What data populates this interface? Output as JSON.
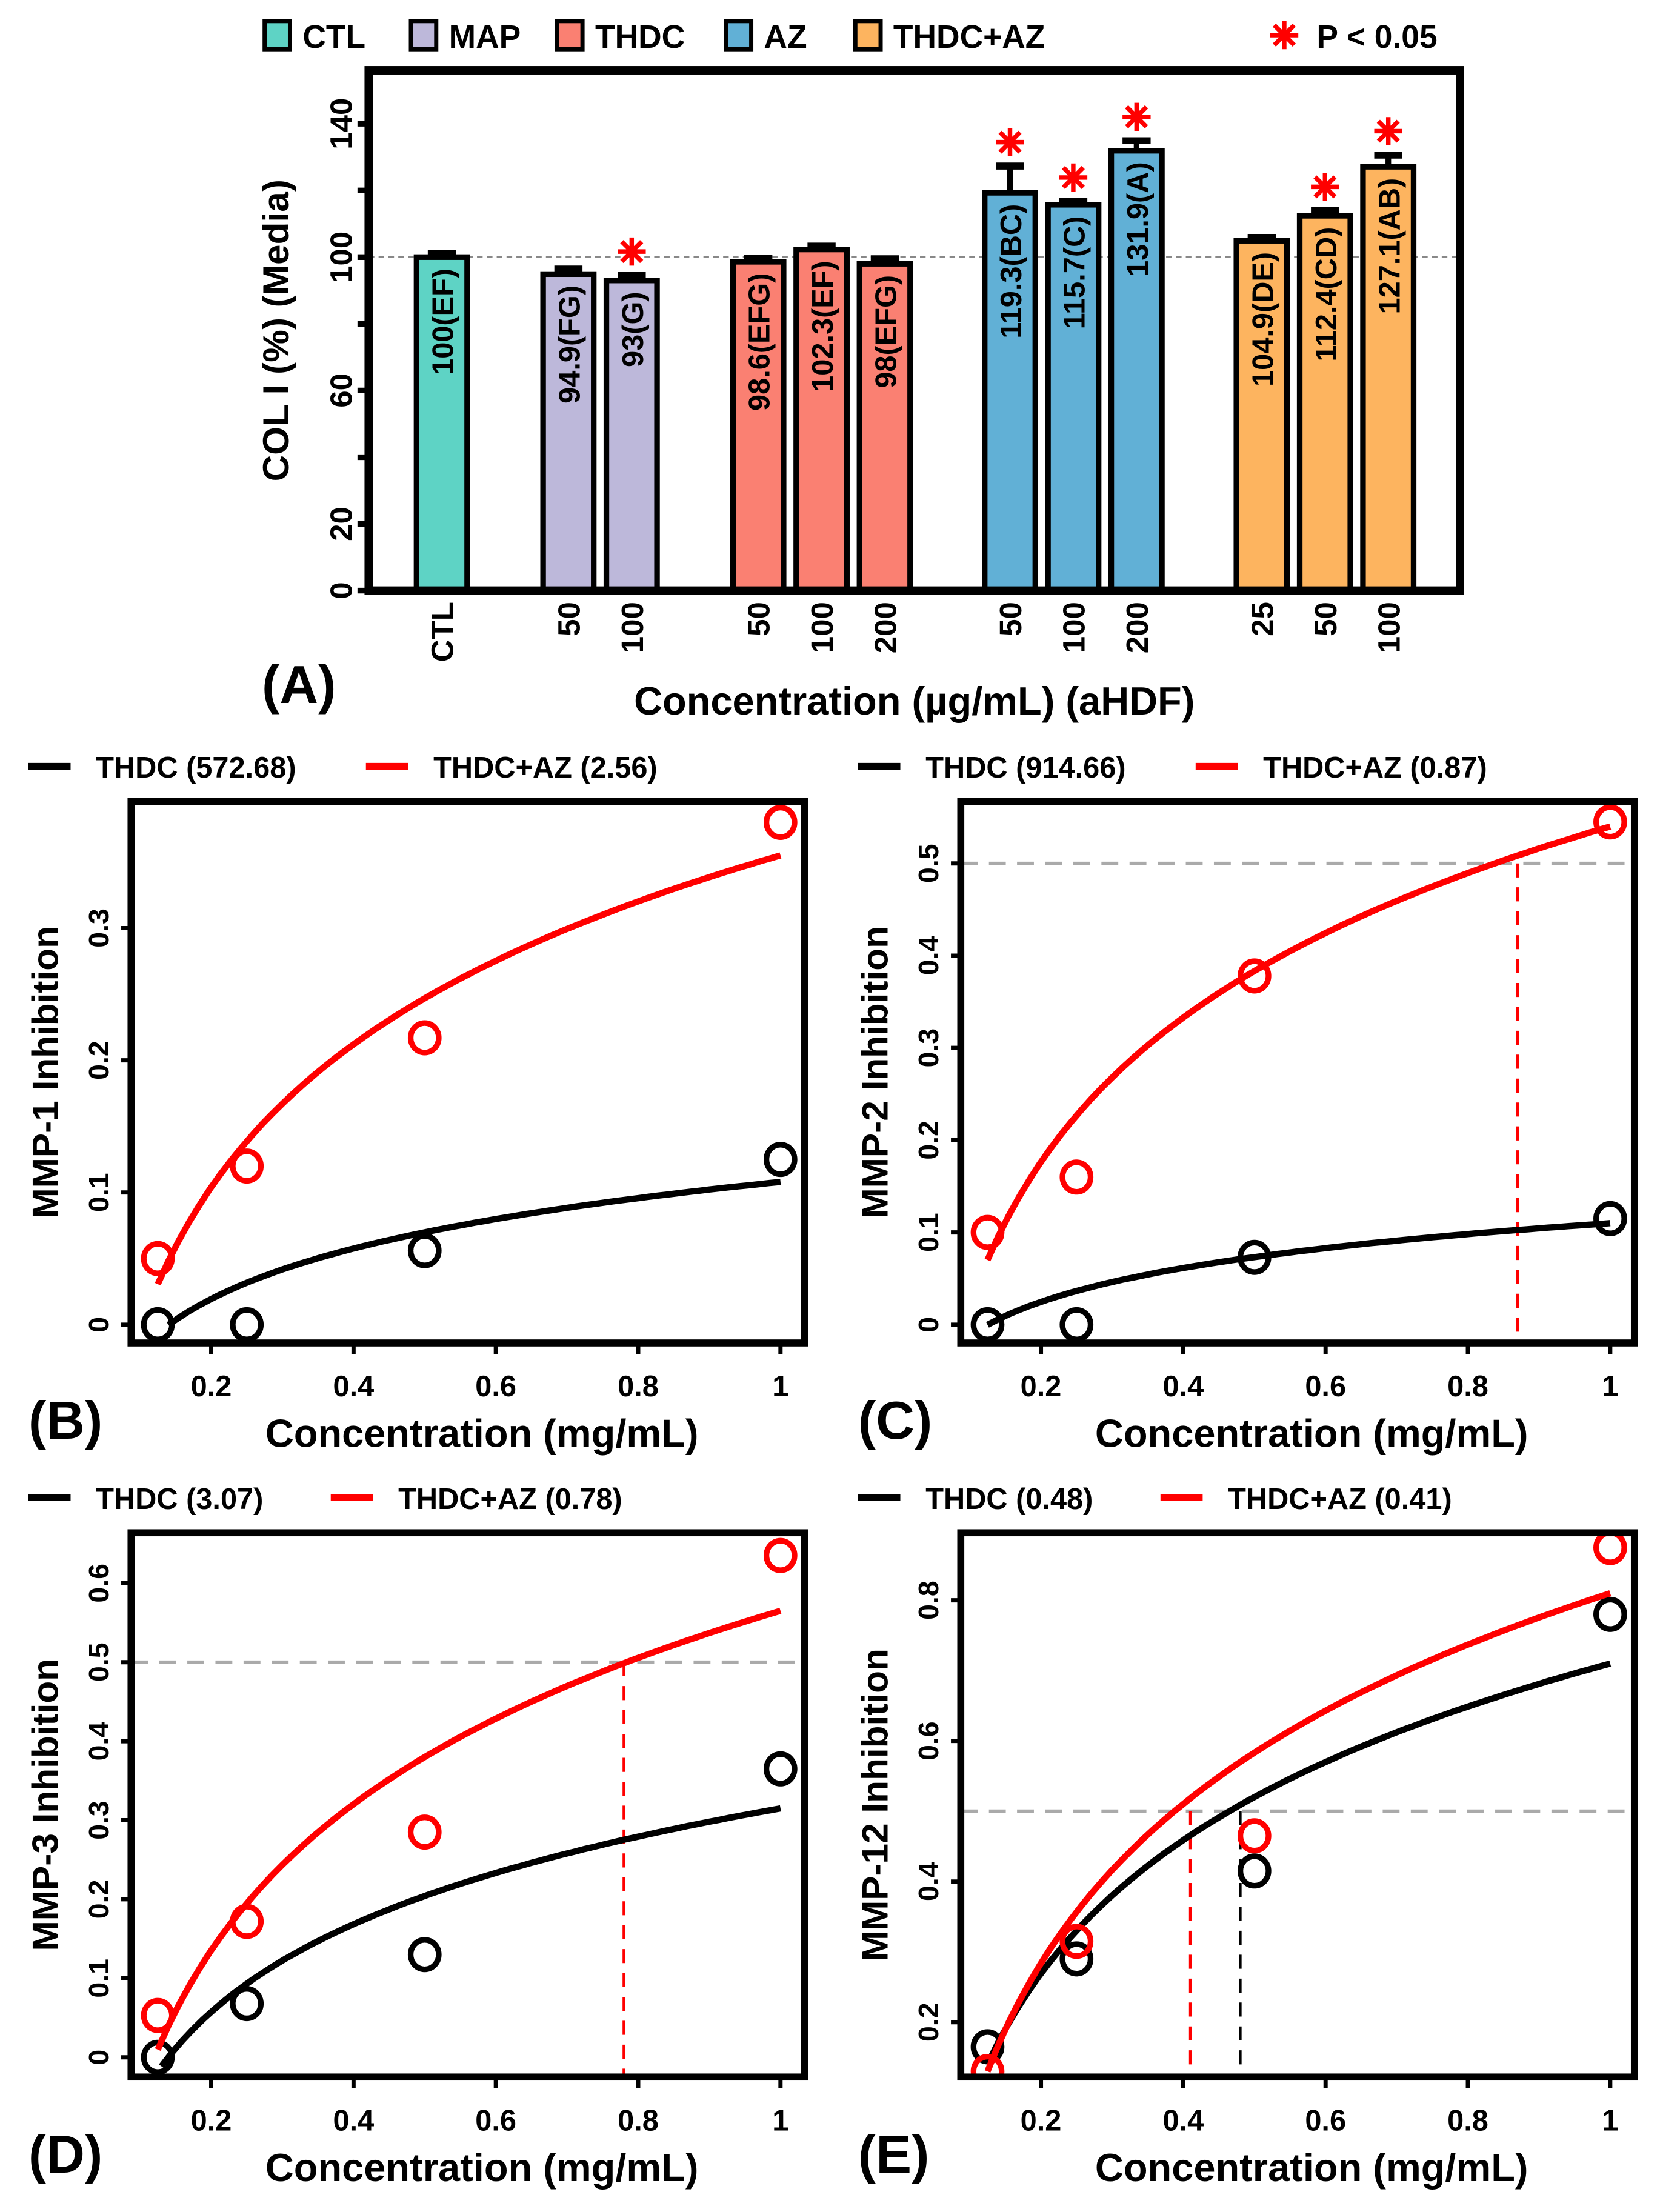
{
  "chart_data": [
    {
      "panel": "(A)",
      "type": "bar",
      "ylabel": "COL I (%) (Media)",
      "xlabel": "Concentration (µg/mL) (aHDF)",
      "ylim": [
        0,
        156
      ],
      "yticks": [
        0,
        20,
        60,
        100,
        140
      ],
      "reference_line": 100,
      "legend": [
        {
          "name": "CTL",
          "color": "#5ED3C5"
        },
        {
          "name": "MAP",
          "color": "#BDB8DA"
        },
        {
          "name": "THDC",
          "color": "#FA8072"
        },
        {
          "name": "AZ",
          "color": "#61B0D6"
        },
        {
          "name": "THDC+AZ",
          "color": "#FDB45F"
        }
      ],
      "significance_legend": "P < 0.05",
      "significance_color": "#FF0000",
      "bars": [
        {
          "group": "CTL",
          "category": "CTL",
          "value": 100,
          "error": 1.0,
          "label": "100(EF)",
          "significant": false
        },
        {
          "group": "MAP",
          "category": "50",
          "value": 94.9,
          "error": 1.5,
          "label": "94.9(FG)",
          "significant": false
        },
        {
          "group": "MAP",
          "category": "100",
          "value": 93,
          "error": 1.5,
          "label": "93(G)",
          "significant": true
        },
        {
          "group": "THDC",
          "category": "50",
          "value": 98.6,
          "error": 1.0,
          "label": "98.6(EFG)",
          "significant": false
        },
        {
          "group": "THDC",
          "category": "100",
          "value": 102.3,
          "error": 1.0,
          "label": "102.3(EF)",
          "significant": false
        },
        {
          "group": "THDC",
          "category": "200",
          "value": 98,
          "error": 1.5,
          "label": "98(EFG)",
          "significant": false
        },
        {
          "group": "AZ",
          "category": "50",
          "value": 119.3,
          "error": 8.0,
          "label": "119.3(BC)",
          "significant": true
        },
        {
          "group": "AZ",
          "category": "100",
          "value": 115.7,
          "error": 1.0,
          "label": "115.7(C)",
          "significant": true
        },
        {
          "group": "AZ",
          "category": "200",
          "value": 131.9,
          "error": 3.0,
          "label": "131.9(A)",
          "significant": true
        },
        {
          "group": "THDC+AZ",
          "category": "25",
          "value": 104.9,
          "error": 1.0,
          "label": "104.9(DE)",
          "significant": false
        },
        {
          "group": "THDC+AZ",
          "category": "50",
          "value": 112.4,
          "error": 1.5,
          "label": "112.4(CD)",
          "significant": true
        },
        {
          "group": "THDC+AZ",
          "category": "100",
          "value": 127.1,
          "error": 3.5,
          "label": "127.1(AB)",
          "significant": true
        }
      ]
    },
    {
      "panel": "(B)",
      "type": "scatter",
      "ylabel": "MMP-1 Inhibition",
      "xlabel": "Concentration (mg/mL)",
      "xlim": [
        0.1,
        1.05
      ],
      "ylim": [
        -0.013,
        0.396
      ],
      "xticks": [
        0.2,
        0.4,
        0.6,
        0.8,
        1
      ],
      "yticks": [
        0,
        0.1,
        0.2,
        0.3
      ],
      "ytick_labels": [
        "0",
        "0.1",
        "0.2",
        "0.3"
      ],
      "xtick_labels": [
        "0.2",
        "0.4",
        "0.6",
        "0.8",
        "1"
      ],
      "half_line": null,
      "series": [
        {
          "name": "THDC (572.68)",
          "color": "#000000",
          "x": [
            0.125,
            0.25,
            0.5,
            1
          ],
          "y": [
            0,
            0,
            0.056,
            0.125
          ],
          "fit": {
            "model": "a+b*ln(x)",
            "a": 0.108,
            "b": 0.055,
            "xmin": 0.14
          },
          "ic50": null
        },
        {
          "name": "THDC+AZ (2.56)",
          "color": "#FF0000",
          "x": [
            0.125,
            0.25,
            0.5,
            1
          ],
          "y": [
            0.05,
            0.12,
            0.217,
            0.38
          ],
          "fit": {
            "model": "a+b*ln(x)",
            "a": 0.355,
            "b": 0.156,
            "xmin": 0.125
          },
          "ic50": null
        }
      ]
    },
    {
      "panel": "(C)",
      "type": "scatter",
      "ylabel": "MMP-2 Inhibition",
      "xlabel": "Concentration (mg/mL)",
      "xlim": [
        0.1,
        1.05
      ],
      "ylim": [
        -0.02,
        0.57
      ],
      "xticks": [
        0.2,
        0.4,
        0.6,
        0.8,
        1
      ],
      "yticks": [
        0,
        0.1,
        0.2,
        0.3,
        0.4,
        0.5
      ],
      "ytick_labels": [
        "0",
        "0.1",
        "0.2",
        "0.3",
        "0.4",
        "0.5"
      ],
      "xtick_labels": [
        "0.2",
        "0.4",
        "0.6",
        "0.8",
        "1"
      ],
      "half_line": 0.5,
      "series": [
        {
          "name": "THDC (914.66)",
          "color": "#000000",
          "x": [
            0.125,
            0.25,
            0.5,
            1
          ],
          "y": [
            0,
            0,
            0.073,
            0.115
          ],
          "fit": {
            "model": "a+b*ln(x)",
            "a": 0.11,
            "b": 0.053,
            "xmin": 0.125
          },
          "ic50": null
        },
        {
          "name": "THDC+AZ (0.87)",
          "color": "#FF0000",
          "x": [
            0.125,
            0.25,
            0.5,
            1
          ],
          "y": [
            0.1,
            0.16,
            0.378,
            0.545
          ],
          "fit": {
            "model": "a+b*ln(x)",
            "a": 0.54,
            "b": 0.226,
            "xmin": 0.125
          },
          "ic50": 0.87
        }
      ]
    },
    {
      "panel": "(D)",
      "type": "scatter",
      "ylabel": "MMP-3 Inhibition",
      "xlabel": "Concentration (mg/mL)",
      "xlim": [
        0.1,
        1.05
      ],
      "ylim": [
        -0.025,
        0.66
      ],
      "xticks": [
        0.2,
        0.4,
        0.6,
        0.8,
        1
      ],
      "yticks": [
        0,
        0.1,
        0.2,
        0.3,
        0.4,
        0.5,
        0.6
      ],
      "ytick_labels": [
        "0",
        "0.1",
        "0.2",
        "0.3",
        "0.4",
        "0.5",
        "0.6"
      ],
      "xtick_labels": [
        "0.2",
        "0.4",
        "0.6",
        "0.8",
        "1"
      ],
      "half_line": 0.5,
      "series": [
        {
          "name": "THDC (3.07)",
          "color": "#000000",
          "x": [
            0.125,
            0.25,
            0.5,
            1
          ],
          "y": [
            0,
            0.068,
            0.13,
            0.365
          ],
          "fit": {
            "model": "a+b*ln(x)",
            "a": 0.315,
            "b": 0.16,
            "xmin": 0.13
          },
          "ic50": null
        },
        {
          "name": "THDC+AZ (0.78)",
          "color": "#FF0000",
          "x": [
            0.125,
            0.25,
            0.5,
            1
          ],
          "y": [
            0.053,
            0.172,
            0.285,
            0.635
          ],
          "fit": {
            "model": "a+b*ln(x)",
            "a": 0.565,
            "b": 0.267,
            "xmin": 0.125
          },
          "ic50": 0.78
        }
      ]
    },
    {
      "panel": "(E)",
      "type": "scatter",
      "ylabel": "MMP-12 Inhibition",
      "xlabel": "Concentration (mg/mL)",
      "xlim": [
        0.1,
        1.05
      ],
      "ylim": [
        0.12,
        0.9
      ],
      "xticks": [
        0.2,
        0.4,
        0.6,
        0.8,
        1
      ],
      "yticks": [
        0.2,
        0.4,
        0.6,
        0.8
      ],
      "ytick_labels": [
        "0.2",
        "0.4",
        "0.6",
        "0.8"
      ],
      "xtick_labels": [
        "0.2",
        "0.4",
        "0.6",
        "0.8",
        "1"
      ],
      "half_line": 0.5,
      "series": [
        {
          "name": "THDC (0.48)",
          "color": "#000000",
          "x": [
            0.125,
            0.25,
            0.5,
            1
          ],
          "y": [
            0.165,
            0.29,
            0.415,
            0.78
          ],
          "fit": {
            "model": "a+b*ln(x)",
            "a": 0.71,
            "b": 0.274,
            "xmin": 0.125
          },
          "ic50": 0.48
        },
        {
          "name": "THDC+AZ (0.41)",
          "color": "#FF0000",
          "x": [
            0.125,
            0.25,
            0.5,
            1
          ],
          "y": [
            0.13,
            0.315,
            0.465,
            0.875
          ],
          "fit": {
            "model": "a+b*ln(x)",
            "a": 0.81,
            "b": 0.327,
            "xmin": 0.125
          },
          "ic50": 0.41
        }
      ]
    }
  ]
}
